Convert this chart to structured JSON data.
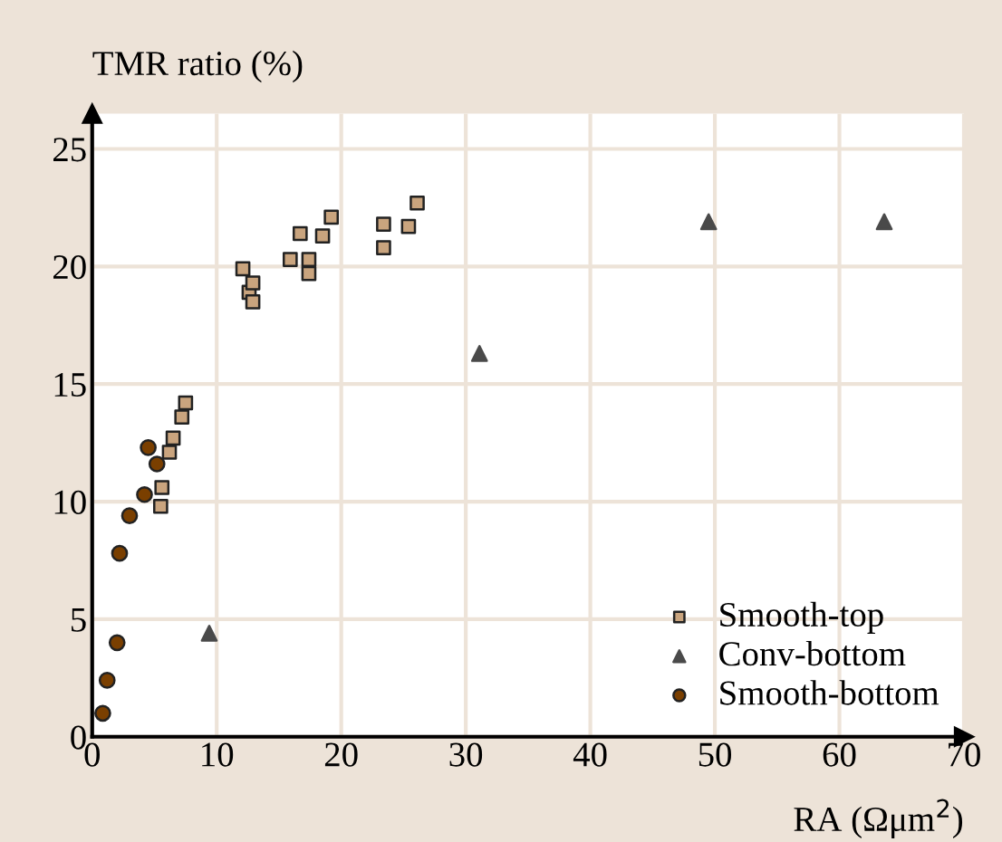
{
  "chart_data": {
    "type": "scatter",
    "xlabel": "RA (Ωμm$^{2}$)",
    "ylabel": "TMR ratio (%)",
    "xlim": [
      0,
      70
    ],
    "ylim": [
      0,
      26.5
    ],
    "xticks": [
      0,
      10,
      20,
      30,
      40,
      50,
      60,
      70
    ],
    "yticks": [
      0,
      5,
      10,
      15,
      20,
      25
    ],
    "grid": true,
    "legend": "bottom right",
    "series": [
      {
        "name": "Smooth-top",
        "color": "#c9a47e",
        "marker": "square",
        "x": [
          12.1,
          12.6,
          12.9,
          12.9,
          15.9,
          16.7,
          17.4,
          17.4,
          18.5,
          19.2,
          23.4,
          23.4,
          25.4,
          26.1,
          5.5,
          5.6,
          6.2,
          6.5,
          7.2,
          7.5
        ],
        "values": [
          19.9,
          18.9,
          19.3,
          18.5,
          20.3,
          21.4,
          20.3,
          19.7,
          21.3,
          22.1,
          21.8,
          20.8,
          21.7,
          22.7,
          9.8,
          10.6,
          12.1,
          12.7,
          13.6,
          14.2
        ]
      },
      {
        "name": "Conv-bottom",
        "color": "#4a4a4a",
        "marker": "triangle",
        "x": [
          9.4,
          31.1,
          49.5,
          63.6
        ],
        "values": [
          4.4,
          16.3,
          21.9,
          21.9
        ]
      },
      {
        "name": "Smooth-bottom",
        "color": "#7a3f00",
        "marker": "circle",
        "x": [
          0.85,
          1.2,
          2.0,
          2.2,
          3.0,
          4.2,
          4.5,
          5.2
        ],
        "values": [
          1.0,
          2.4,
          4.0,
          7.8,
          9.4,
          10.3,
          12.3,
          11.6
        ]
      }
    ]
  }
}
